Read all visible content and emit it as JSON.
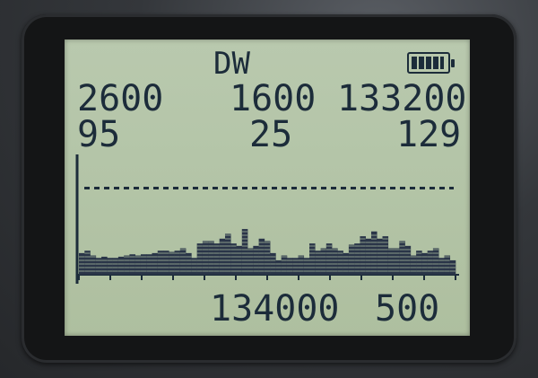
{
  "display": {
    "mode": "DW",
    "battery_level": 1.0,
    "row1": {
      "left": "2600",
      "mid": "1600",
      "right": "133200"
    },
    "row2": {
      "left": "95",
      "mid": "25",
      "right": "129"
    },
    "bottom": {
      "frequency": "134000",
      "step": "500"
    }
  },
  "chart_data": {
    "type": "bar",
    "title": "",
    "xlabel": "",
    "ylabel": "",
    "ylim": [
      0,
      100
    ],
    "threshold": 72,
    "values": [
      18,
      20,
      16,
      14,
      15,
      14,
      14,
      15,
      16,
      17,
      16,
      17,
      17,
      18,
      20,
      20,
      19,
      20,
      22,
      18,
      14,
      26,
      28,
      28,
      26,
      30,
      34,
      26,
      24,
      38,
      22,
      24,
      30,
      28,
      18,
      12,
      16,
      14,
      14,
      16,
      14,
      26,
      20,
      22,
      26,
      22,
      20,
      18,
      25,
      26,
      32,
      30,
      36,
      30,
      32,
      22,
      22,
      28,
      24,
      16,
      20,
      18,
      20,
      22,
      14,
      16,
      12
    ],
    "colors": {
      "lcd_text": "#1c2c3a",
      "lcd_bg": "#b6c6aa"
    }
  }
}
